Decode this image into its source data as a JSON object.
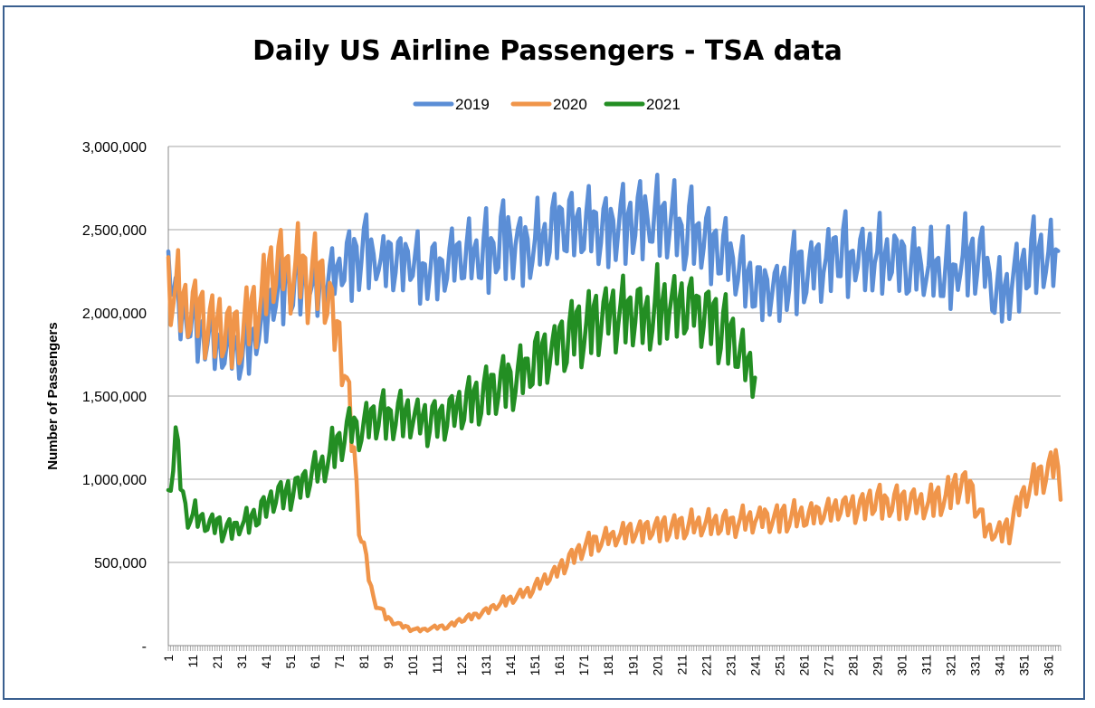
{
  "chart_data": {
    "type": "line",
    "title": "Daily US Airline Passengers - TSA data",
    "xlabel": "",
    "ylabel": "Number of Passengers",
    "xlim": [
      1,
      366
    ],
    "ylim": [
      0,
      3000000
    ],
    "yticks": [
      {
        "value": 0,
        "label": "-"
      },
      {
        "value": 500000,
        "label": "500,000"
      },
      {
        "value": 1000000,
        "label": "1,000,000"
      },
      {
        "value": 1500000,
        "label": "1,500,000"
      },
      {
        "value": 2000000,
        "label": "2,000,000"
      },
      {
        "value": 2500000,
        "label": "2,500,000"
      },
      {
        "value": 3000000,
        "label": "3,000,000"
      }
    ],
    "xtick_labels": [
      "1",
      "11",
      "21",
      "31",
      "41",
      "51",
      "61",
      "71",
      "81",
      "91",
      "101",
      "111",
      "121",
      "131",
      "141",
      "151",
      "161",
      "171",
      "181",
      "191",
      "201",
      "211",
      "221",
      "231",
      "241",
      "251",
      "261",
      "271",
      "281",
      "291",
      "301",
      "311",
      "321",
      "331",
      "341",
      "351",
      "361"
    ],
    "grid": true,
    "legend_position": "top-center",
    "series": [
      {
        "name": "2019",
        "color": "#5b8ed6",
        "x_start": 1,
        "x_end": 365,
        "weekly_pattern": [
          1.03,
          0.93,
          0.96,
          1.04,
          1.09,
          0.92,
          1.03
        ],
        "anchors": [
          [
            1,
            2300000
          ],
          [
            5,
            2000000
          ],
          [
            15,
            1850000
          ],
          [
            25,
            1800000
          ],
          [
            32,
            1750000
          ],
          [
            40,
            1950000
          ],
          [
            50,
            2200000
          ],
          [
            60,
            2150000
          ],
          [
            70,
            2250000
          ],
          [
            80,
            2350000
          ],
          [
            90,
            2300000
          ],
          [
            100,
            2300000
          ],
          [
            110,
            2280000
          ],
          [
            120,
            2330000
          ],
          [
            130,
            2350000
          ],
          [
            140,
            2450000
          ],
          [
            150,
            2400000
          ],
          [
            160,
            2500000
          ],
          [
            170,
            2550000
          ],
          [
            180,
            2520000
          ],
          [
            190,
            2560000
          ],
          [
            200,
            2560000
          ],
          [
            210,
            2500000
          ],
          [
            220,
            2450000
          ],
          [
            230,
            2350000
          ],
          [
            240,
            2150000
          ],
          [
            250,
            2150000
          ],
          [
            260,
            2250000
          ],
          [
            270,
            2300000
          ],
          [
            280,
            2350000
          ],
          [
            290,
            2350000
          ],
          [
            300,
            2300000
          ],
          [
            310,
            2250000
          ],
          [
            320,
            2250000
          ],
          [
            330,
            2350000
          ],
          [
            335,
            2300000
          ],
          [
            340,
            2100000
          ],
          [
            350,
            2250000
          ],
          [
            355,
            2350000
          ],
          [
            365,
            2300000
          ]
        ]
      },
      {
        "name": "2020",
        "color": "#f0954a",
        "x_start": 1,
        "x_end": 366,
        "weekly_pattern": [
          1.06,
          0.9,
          0.95,
          1.04,
          1.1,
          0.91,
          1.04
        ],
        "anchors": [
          [
            1,
            2200000
          ],
          [
            10,
            2000000
          ],
          [
            20,
            1950000
          ],
          [
            30,
            1850000
          ],
          [
            40,
            2100000
          ],
          [
            45,
            2300000
          ],
          [
            55,
            2250000
          ],
          [
            65,
            2150000
          ],
          [
            70,
            1900000
          ],
          [
            73,
            1700000
          ],
          [
            76,
            1300000
          ],
          [
            79,
            750000
          ],
          [
            82,
            500000
          ],
          [
            85,
            280000
          ],
          [
            90,
            170000
          ],
          [
            95,
            130000
          ],
          [
            100,
            100000
          ],
          [
            105,
            95000
          ],
          [
            110,
            110000
          ],
          [
            115,
            115000
          ],
          [
            120,
            150000
          ],
          [
            130,
            200000
          ],
          [
            140,
            280000
          ],
          [
            150,
            340000
          ],
          [
            160,
            450000
          ],
          [
            170,
            580000
          ],
          [
            180,
            650000
          ],
          [
            190,
            680000
          ],
          [
            200,
            700000
          ],
          [
            210,
            720000
          ],
          [
            220,
            730000
          ],
          [
            230,
            740000
          ],
          [
            240,
            760000
          ],
          [
            250,
            770000
          ],
          [
            260,
            780000
          ],
          [
            270,
            810000
          ],
          [
            280,
            840000
          ],
          [
            290,
            860000
          ],
          [
            300,
            860000
          ],
          [
            310,
            850000
          ],
          [
            320,
            900000
          ],
          [
            325,
            980000
          ],
          [
            330,
            920000
          ],
          [
            335,
            700000
          ],
          [
            340,
            680000
          ],
          [
            345,
            700000
          ],
          [
            350,
            900000
          ],
          [
            355,
            1000000
          ],
          [
            360,
            1050000
          ],
          [
            364,
            1100000
          ],
          [
            366,
            950000
          ]
        ]
      },
      {
        "name": "2021",
        "color": "#238e23",
        "x_start": 1,
        "x_end": 241,
        "weekly_pattern": [
          1.05,
          0.9,
          0.95,
          1.04,
          1.1,
          0.92,
          1.04
        ],
        "anchors": [
          [
            1,
            900000
          ],
          [
            4,
            1250000
          ],
          [
            8,
            800000
          ],
          [
            15,
            750000
          ],
          [
            25,
            700000
          ],
          [
            35,
            750000
          ],
          [
            45,
            900000
          ],
          [
            55,
            950000
          ],
          [
            65,
            1100000
          ],
          [
            75,
            1300000
          ],
          [
            85,
            1350000
          ],
          [
            95,
            1400000
          ],
          [
            105,
            1350000
          ],
          [
            115,
            1380000
          ],
          [
            125,
            1450000
          ],
          [
            135,
            1550000
          ],
          [
            145,
            1650000
          ],
          [
            155,
            1750000
          ],
          [
            165,
            1850000
          ],
          [
            175,
            1950000
          ],
          [
            185,
            2000000
          ],
          [
            195,
            2000000
          ],
          [
            205,
            2050000
          ],
          [
            215,
            2050000
          ],
          [
            225,
            1950000
          ],
          [
            232,
            1850000
          ],
          [
            238,
            1700000
          ],
          [
            241,
            1650000
          ]
        ]
      }
    ]
  }
}
